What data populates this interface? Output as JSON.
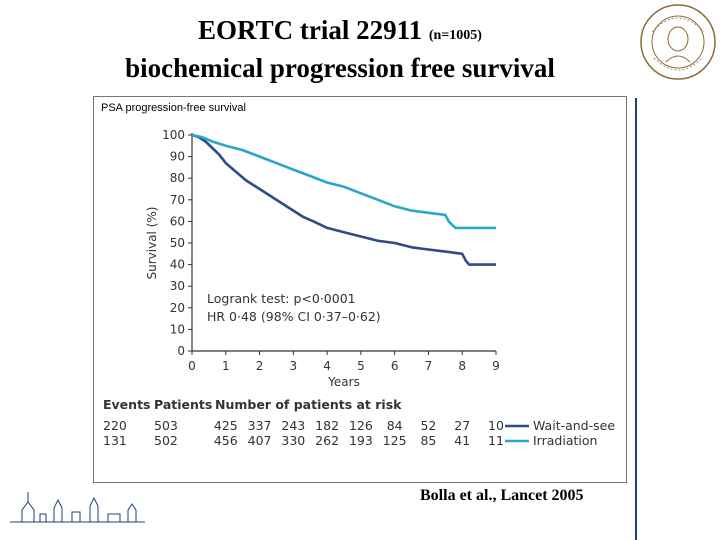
{
  "slide": {
    "title_line1": "EORTC trial 22911",
    "title_n": "(n=1005)",
    "title_line2": "biochemical progression free survival",
    "citation": "Bolla et al., Lancet 2005"
  },
  "colors": {
    "wait_and_see": "#2f4b8a",
    "irradiation": "#2aa6c9",
    "side_bar": "#1f3f7a"
  },
  "chart_data": {
    "type": "line",
    "title": "PSA progression-free survival",
    "xlabel": "Years",
    "ylabel": "Survival (%)",
    "xlim": [
      0,
      9
    ],
    "ylim": [
      0,
      100
    ],
    "xticks": [
      "0",
      "1",
      "2",
      "3",
      "4",
      "5",
      "6",
      "7",
      "8",
      "9"
    ],
    "yticks": [
      "0",
      "10",
      "20",
      "30",
      "40",
      "50",
      "60",
      "70",
      "80",
      "90",
      "100"
    ],
    "annotation_lines": [
      "Logrank test: p<0·0001",
      "HR 0·48 (98% CI 0·37–0·62)"
    ],
    "series": [
      {
        "name": "Wait-and-see",
        "points": [
          [
            0,
            100
          ],
          [
            0.2,
            99
          ],
          [
            0.4,
            97
          ],
          [
            0.6,
            94
          ],
          [
            0.8,
            91
          ],
          [
            1,
            87
          ],
          [
            1.3,
            83
          ],
          [
            1.6,
            79
          ],
          [
            2,
            75
          ],
          [
            2.3,
            72
          ],
          [
            2.6,
            69
          ],
          [
            3,
            65
          ],
          [
            3.3,
            62
          ],
          [
            3.6,
            60
          ],
          [
            4,
            57
          ],
          [
            4.5,
            55
          ],
          [
            5,
            53
          ],
          [
            5.5,
            51
          ],
          [
            6,
            50
          ],
          [
            6.5,
            48
          ],
          [
            7,
            47
          ],
          [
            7.5,
            46
          ],
          [
            8,
            45
          ],
          [
            8.1,
            42
          ],
          [
            8.2,
            40
          ],
          [
            9,
            40
          ]
        ]
      },
      {
        "name": "Irradiation",
        "points": [
          [
            0,
            100
          ],
          [
            0.3,
            99
          ],
          [
            0.6,
            97
          ],
          [
            1,
            95
          ],
          [
            1.5,
            93
          ],
          [
            2,
            90
          ],
          [
            2.5,
            87
          ],
          [
            3,
            84
          ],
          [
            3.5,
            81
          ],
          [
            4,
            78
          ],
          [
            4.5,
            76
          ],
          [
            5,
            73
          ],
          [
            5.5,
            70
          ],
          [
            6,
            67
          ],
          [
            6.5,
            65
          ],
          [
            7,
            64
          ],
          [
            7.5,
            63
          ],
          [
            7.6,
            60
          ],
          [
            7.8,
            57
          ],
          [
            9,
            57
          ]
        ]
      }
    ],
    "risk_table": {
      "headers": [
        "Events",
        "Patients",
        "Number of patients at risk"
      ],
      "rows": [
        {
          "events": "220",
          "patients": "503",
          "at_risk": [
            "425",
            "337",
            "243",
            "182",
            "126",
            "84",
            "52",
            "27",
            "10"
          ],
          "label": "Wait-and-see"
        },
        {
          "events": "131",
          "patients": "502",
          "at_risk": [
            "456",
            "407",
            "330",
            "262",
            "193",
            "125",
            "85",
            "41",
            "11"
          ],
          "label": "Irradiation"
        }
      ]
    }
  }
}
